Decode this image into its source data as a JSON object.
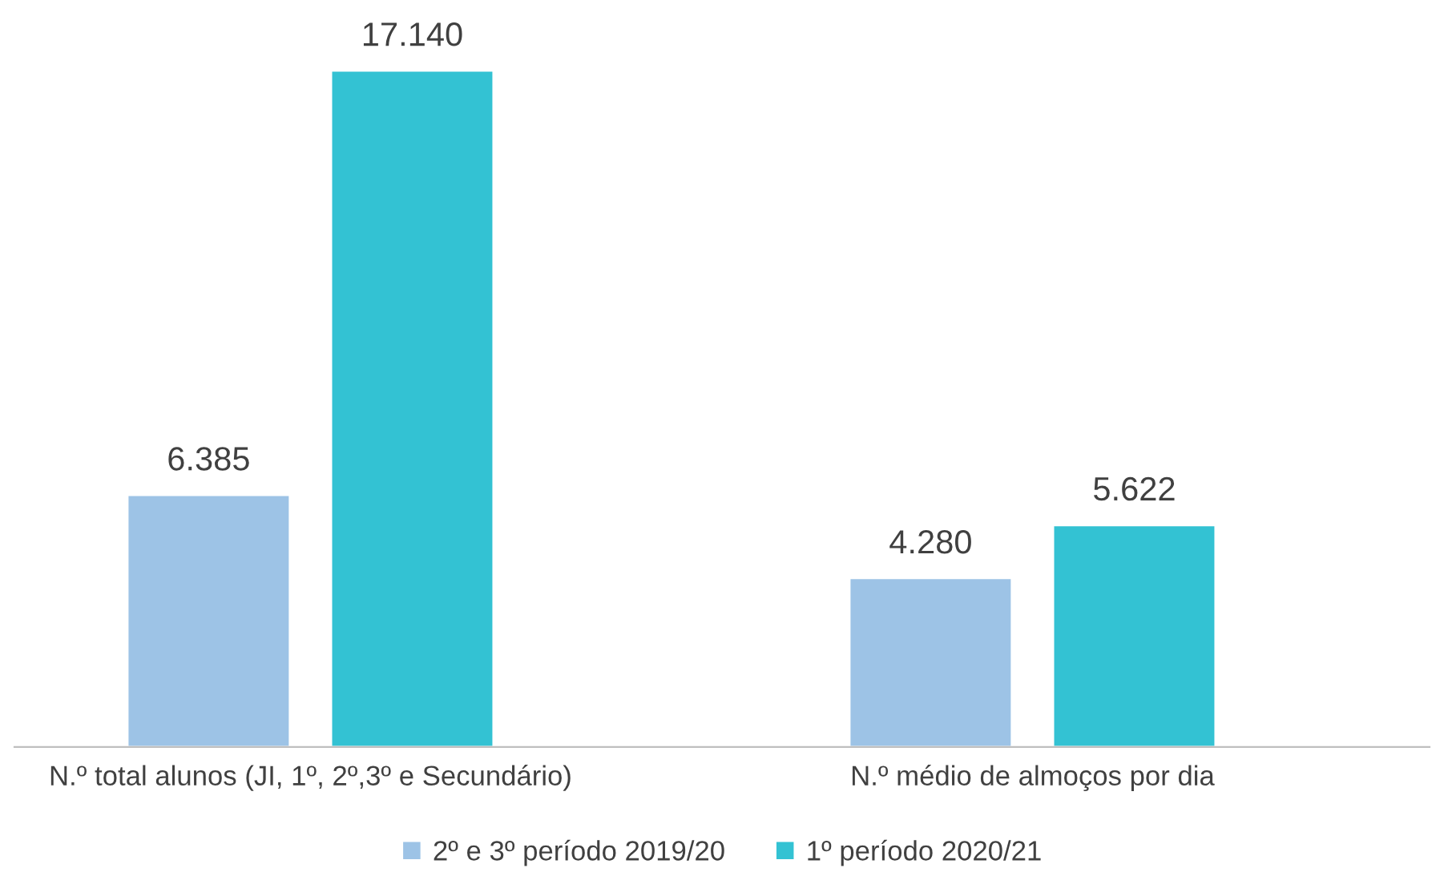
{
  "chart_data": {
    "type": "bar",
    "categories": [
      "N.º total alunos (JI, 1º, 2º,3º e Secundário)",
      "N.º médio de almoços por dia"
    ],
    "series": [
      {
        "name": "2º e 3º período 2019/20",
        "color": "#9dc3e6",
        "values": [
          6385,
          4280
        ],
        "value_labels": [
          "6.385",
          "4.280"
        ]
      },
      {
        "name": "1º período 2020/21",
        "color": "#33c2d3",
        "values": [
          17140,
          5622
        ],
        "value_labels": [
          "17.140",
          "5.622"
        ]
      }
    ],
    "legend": "bottom",
    "grid": false
  }
}
